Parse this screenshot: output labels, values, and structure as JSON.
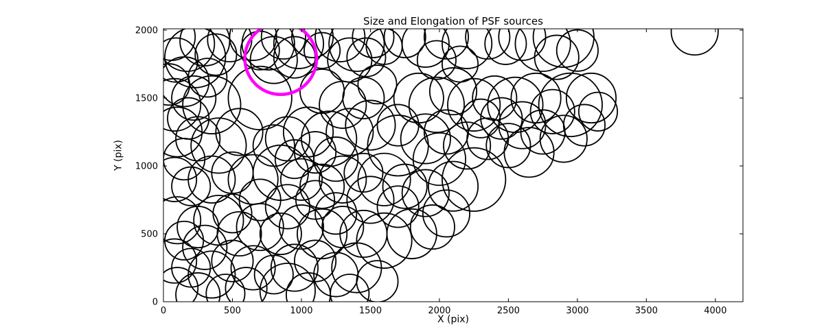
{
  "chart_data": {
    "type": "scatter",
    "title": "Size and Elongation of PSF sources",
    "xlabel": "X (pix)",
    "ylabel": "Y (pix)",
    "xlim": [
      0,
      4200
    ],
    "ylim": [
      0,
      2010
    ],
    "xticks": [
      0,
      500,
      1000,
      1500,
      2000,
      2500,
      3000,
      3500,
      4000
    ],
    "yticks": [
      0,
      500,
      1000,
      1500,
      2000
    ],
    "grid": false,
    "legend": "none",
    "marker_style": "open-circle",
    "circle_color": "#000000",
    "circle_stroke_width": 1.8,
    "axis_color": "#000000",
    "background_color": "#ffffff",
    "highlight_circle": {
      "x": 850,
      "y": 1790,
      "r": 260,
      "color": "#ff00ff",
      "stroke_width": 4.5
    },
    "circles": [
      [
        60,
        1950,
        170
      ],
      [
        170,
        1900,
        200
      ],
      [
        300,
        1920,
        180
      ],
      [
        90,
        1780,
        160
      ],
      [
        230,
        1800,
        220
      ],
      [
        380,
        1820,
        150
      ],
      [
        480,
        1930,
        160
      ],
      [
        150,
        1620,
        180
      ],
      [
        320,
        1650,
        140
      ],
      [
        40,
        1600,
        150
      ],
      [
        650,
        1950,
        170
      ],
      [
        760,
        1900,
        190
      ],
      [
        870,
        1950,
        160
      ],
      [
        980,
        1900,
        180
      ],
      [
        1080,
        1950,
        150
      ],
      [
        800,
        1780,
        170
      ],
      [
        950,
        1800,
        150
      ],
      [
        700,
        1850,
        140
      ],
      [
        1150,
        1850,
        130
      ],
      [
        1280,
        1950,
        180
      ],
      [
        1400,
        1900,
        200
      ],
      [
        1520,
        1950,
        150
      ],
      [
        1350,
        1780,
        160
      ],
      [
        1470,
        1800,
        140
      ],
      [
        1600,
        1880,
        130
      ],
      [
        1750,
        1950,
        150
      ],
      [
        1900,
        1900,
        170
      ],
      [
        2050,
        1950,
        160
      ],
      [
        1980,
        1780,
        140
      ],
      [
        2200,
        1900,
        180
      ],
      [
        2150,
        1750,
        130
      ],
      [
        2350,
        1950,
        160
      ],
      [
        2480,
        1900,
        150
      ],
      [
        2600,
        1950,
        170
      ],
      [
        2750,
        1900,
        200
      ],
      [
        2900,
        1950,
        220
      ],
      [
        2850,
        1800,
        160
      ],
      [
        3000,
        1850,
        150
      ],
      [
        3850,
        1990,
        170
      ],
      [
        80,
        1450,
        190
      ],
      [
        220,
        1500,
        160
      ],
      [
        350,
        1450,
        210
      ],
      [
        180,
        1350,
        150
      ],
      [
        700,
        1500,
        230
      ],
      [
        1150,
        1550,
        160
      ],
      [
        1300,
        1450,
        170
      ],
      [
        1450,
        1500,
        150
      ],
      [
        1550,
        1600,
        140
      ],
      [
        1850,
        1500,
        180
      ],
      [
        1980,
        1450,
        200
      ],
      [
        2100,
        1550,
        170
      ],
      [
        2250,
        1450,
        190
      ],
      [
        2400,
        1500,
        160
      ],
      [
        2550,
        1450,
        200
      ],
      [
        2700,
        1500,
        180
      ],
      [
        2820,
        1400,
        160
      ],
      [
        2950,
        1450,
        230
      ],
      [
        3100,
        1500,
        180
      ],
      [
        2450,
        1350,
        150
      ],
      [
        2600,
        1300,
        170
      ],
      [
        100,
        1250,
        180
      ],
      [
        250,
        1200,
        160
      ],
      [
        400,
        1150,
        200
      ],
      [
        150,
        1050,
        150
      ],
      [
        550,
        1250,
        170
      ],
      [
        900,
        1200,
        160
      ],
      [
        1050,
        1250,
        180
      ],
      [
        1200,
        1200,
        200
      ],
      [
        1350,
        1250,
        170
      ],
      [
        1100,
        1100,
        150
      ],
      [
        1250,
        1050,
        160
      ],
      [
        1500,
        1300,
        180
      ],
      [
        1700,
        1150,
        220
      ],
      [
        1900,
        1200,
        180
      ],
      [
        2050,
        1250,
        160
      ],
      [
        2200,
        1150,
        170
      ],
      [
        2350,
        1200,
        150
      ],
      [
        2000,
        1050,
        190
      ],
      [
        2500,
        1150,
        160
      ],
      [
        2650,
        1100,
        180
      ],
      [
        950,
        1050,
        140
      ],
      [
        800,
        1150,
        150
      ],
      [
        80,
        900,
        160
      ],
      [
        200,
        850,
        140
      ],
      [
        350,
        900,
        170
      ],
      [
        500,
        950,
        150
      ],
      [
        650,
        900,
        180
      ],
      [
        850,
        950,
        200
      ],
      [
        1000,
        900,
        150
      ],
      [
        1150,
        850,
        160
      ],
      [
        1300,
        900,
        170
      ],
      [
        1450,
        950,
        140
      ],
      [
        1600,
        900,
        190
      ],
      [
        1750,
        850,
        160
      ],
      [
        1900,
        800,
        170
      ],
      [
        2100,
        850,
        180
      ],
      [
        2250,
        900,
        230
      ],
      [
        700,
        750,
        150
      ],
      [
        900,
        700,
        160
      ],
      [
        1100,
        750,
        140
      ],
      [
        1500,
        750,
        170
      ],
      [
        1700,
        700,
        150
      ],
      [
        100,
        600,
        170
      ],
      [
        250,
        550,
        150
      ],
      [
        400,
        600,
        180
      ],
      [
        550,
        500,
        160
      ],
      [
        150,
        450,
        140
      ],
      [
        300,
        400,
        160
      ],
      [
        700,
        550,
        170
      ],
      [
        850,
        500,
        150
      ],
      [
        1000,
        550,
        160
      ],
      [
        1150,
        500,
        180
      ],
      [
        1300,
        550,
        150
      ],
      [
        1450,
        500,
        170
      ],
      [
        1600,
        450,
        200
      ],
      [
        1800,
        500,
        180
      ],
      [
        1950,
        550,
        160
      ],
      [
        500,
        650,
        140
      ],
      [
        1250,
        650,
        150
      ],
      [
        2050,
        650,
        170
      ],
      [
        80,
        300,
        160
      ],
      [
        200,
        250,
        140
      ],
      [
        350,
        200,
        170
      ],
      [
        100,
        100,
        150
      ],
      [
        250,
        50,
        160
      ],
      [
        500,
        300,
        150
      ],
      [
        650,
        250,
        160
      ],
      [
        800,
        200,
        140
      ],
      [
        950,
        250,
        170
      ],
      [
        1100,
        300,
        150
      ],
      [
        1250,
        200,
        160
      ],
      [
        1400,
        250,
        180
      ],
      [
        900,
        80,
        200
      ],
      [
        1050,
        50,
        160
      ],
      [
        600,
        100,
        150
      ],
      [
        450,
        60,
        140
      ],
      [
        1550,
        150,
        150
      ],
      [
        1350,
        60,
        140
      ],
      [
        1700,
        1300,
        150
      ],
      [
        2750,
        1250,
        160
      ],
      [
        2900,
        1200,
        170
      ],
      [
        3050,
        1300,
        150
      ],
      [
        3150,
        1400,
        140
      ],
      [
        2300,
        1350,
        140
      ]
    ]
  }
}
